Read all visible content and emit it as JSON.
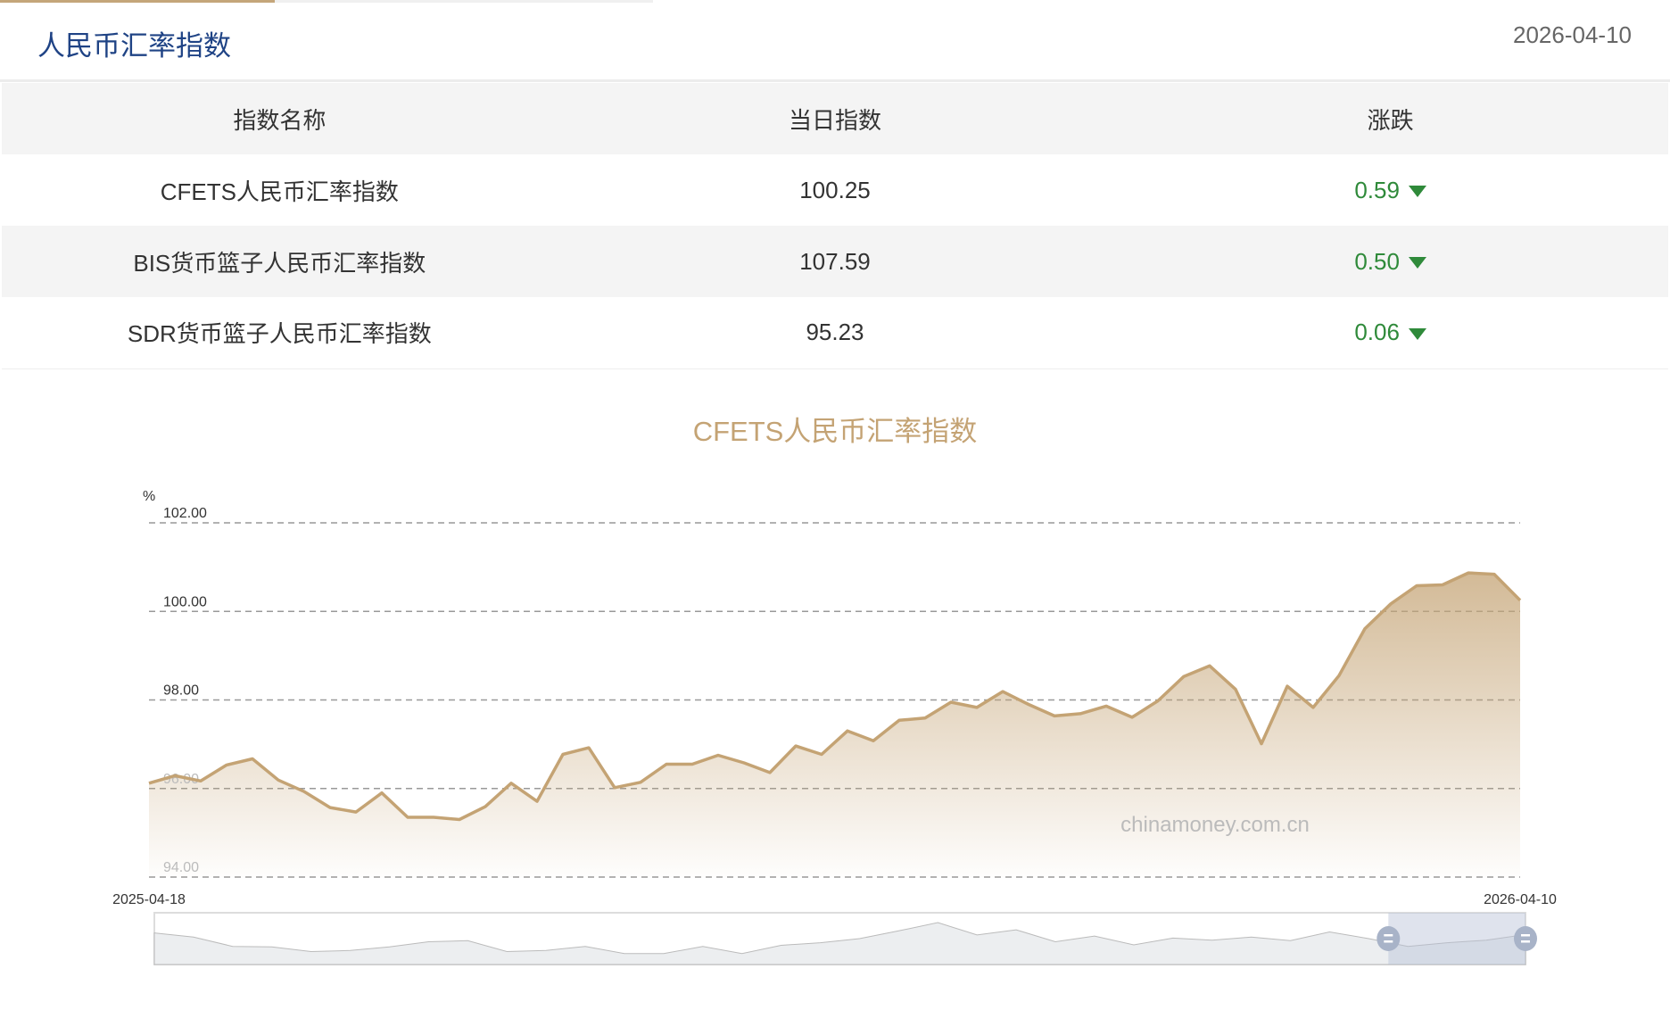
{
  "tabs": {
    "active_color": "#c4a67a"
  },
  "header": {
    "title": "人民币汇率指数",
    "date": "2026-04-10"
  },
  "table": {
    "columns": [
      "指数名称",
      "当日指数",
      "涨跌"
    ],
    "rows": [
      {
        "name": "CFETS人民币汇率指数",
        "value": "100.25",
        "change": "0.59",
        "direction": "down"
      },
      {
        "name": "BIS货币篮子人民币汇率指数",
        "value": "107.59",
        "change": "0.50",
        "direction": "down"
      },
      {
        "name": "SDR货币篮子人民币汇率指数",
        "value": "95.23",
        "change": "0.06",
        "direction": "down"
      }
    ],
    "change_color": "#2f8a3a"
  },
  "chart_data": {
    "type": "area",
    "title": "CFETS人民币汇率指数",
    "yunit": "%",
    "ylim": [
      94,
      102
    ],
    "yticks": [
      "94.00",
      "96.00",
      "98.00",
      "100.00",
      "102.00"
    ],
    "x_start": "2025-04-18",
    "x_end": "2026-04-10",
    "grid": true,
    "line_color": "#c4a374",
    "watermark": "chinamoney.com.cn",
    "values": [
      96.12,
      96.29,
      96.17,
      96.53,
      96.67,
      96.19,
      95.93,
      95.57,
      95.47,
      95.9,
      95.35,
      95.35,
      95.3,
      95.59,
      96.12,
      95.71,
      96.77,
      96.92,
      96.02,
      96.14,
      96.55,
      96.55,
      96.75,
      96.58,
      96.36,
      96.96,
      96.77,
      97.3,
      97.08,
      97.54,
      97.59,
      97.95,
      97.83,
      98.19,
      97.9,
      97.64,
      97.69,
      97.86,
      97.61,
      97.98,
      98.53,
      98.77,
      98.24,
      97.01,
      98.31,
      97.83,
      98.55,
      99.61,
      100.17,
      100.58,
      100.6,
      100.87,
      100.84,
      100.25
    ],
    "navigator": {
      "selection": [
        0.9,
        1.0
      ],
      "levels": [
        0.61,
        0.53,
        0.35,
        0.34,
        0.25,
        0.27,
        0.34,
        0.44,
        0.46,
        0.25,
        0.27,
        0.35,
        0.21,
        0.21,
        0.35,
        0.21,
        0.37,
        0.42,
        0.5,
        0.65,
        0.81,
        0.57,
        0.67,
        0.44,
        0.55,
        0.38,
        0.51,
        0.47,
        0.53,
        0.46,
        0.63,
        0.5,
        0.35,
        0.42,
        0.47,
        0.58
      ]
    }
  }
}
